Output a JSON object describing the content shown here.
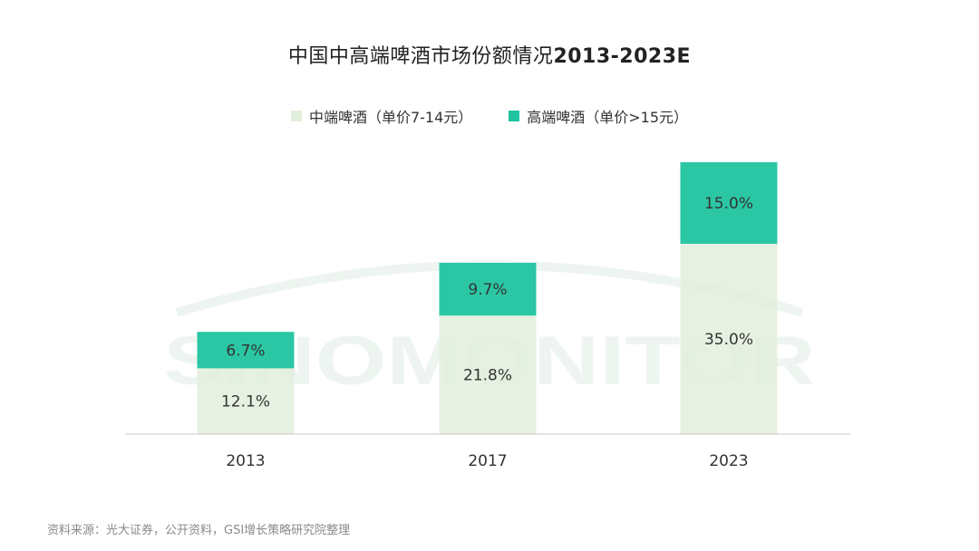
{
  "title": {
    "main": "中国中高端啤酒市场份额情况",
    "period": "2013-2023E"
  },
  "source_note": "资料来源：光大证券，公开资料，GSI增长策略研究院整理",
  "watermark": "SINOMONITOR",
  "colors": {
    "mid_series": "#e2efdc",
    "high_series": "#20c4a0",
    "watermark": "#eef5f1",
    "axis": "#c8c8c8",
    "text": "#333333"
  },
  "chart_data": {
    "type": "bar",
    "stacked": true,
    "categories": [
      "2013",
      "2017",
      "2023"
    ],
    "series": [
      {
        "name": "中端啤酒（单价7-14元）",
        "values": [
          12.1,
          21.8,
          35.0
        ],
        "labels": [
          "12.1%",
          "21.8%",
          "35.0%"
        ],
        "color": "#e2efdc"
      },
      {
        "name": "高端啤酒（单价>15元）",
        "values": [
          6.7,
          9.7,
          15.0
        ],
        "labels": [
          "6.7%",
          "9.7%",
          "15.0%"
        ],
        "color": "#20c4a0"
      }
    ],
    "ylim": [
      0,
      50
    ],
    "grid": false,
    "legend_position": "top-center"
  }
}
